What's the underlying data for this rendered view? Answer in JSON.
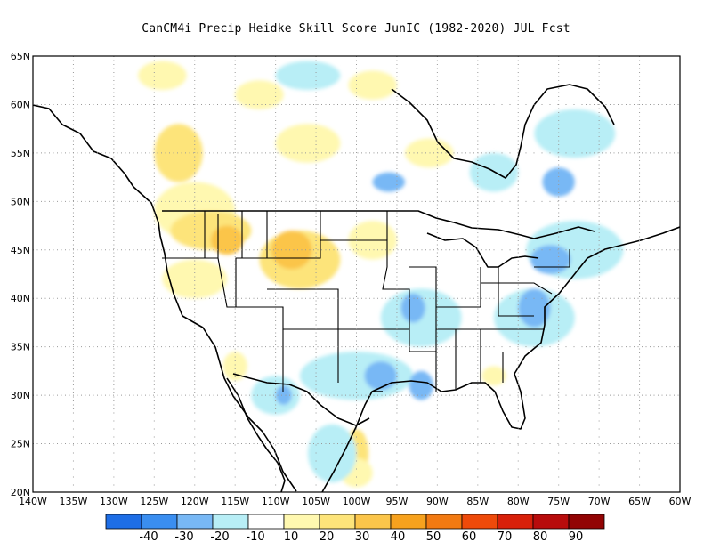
{
  "title": "CanCM4i Precip Heidke Skill Score JunIC (1982-2020) JUL Fcst",
  "map": {
    "projection": "equirectangular",
    "lon_range": [
      -140,
      -60
    ],
    "lat_range": [
      20,
      65
    ],
    "lat_labels": [
      "65N",
      "60N",
      "55N",
      "50N",
      "45N",
      "40N",
      "35N",
      "30N",
      "25N",
      "20N"
    ],
    "lon_labels": [
      "140W",
      "135W",
      "130W",
      "125W",
      "120W",
      "115W",
      "110W",
      "105W",
      "100W",
      "95W",
      "90W",
      "85W",
      "80W",
      "75W",
      "70W",
      "65W",
      "60W"
    ],
    "gridlines": "dotted",
    "regions": [
      {
        "category": "10-20",
        "center": [
          -124,
          63
        ],
        "size": [
          6,
          3
        ]
      },
      {
        "category": "10-20",
        "center": [
          -112,
          61
        ],
        "size": [
          6,
          3
        ]
      },
      {
        "category": "10-20",
        "center": [
          -98,
          62
        ],
        "size": [
          6,
          3
        ]
      },
      {
        "category": "10-20",
        "center": [
          -106,
          56
        ],
        "size": [
          8,
          4
        ]
      },
      {
        "category": "10-20",
        "center": [
          -91,
          55
        ],
        "size": [
          6,
          3
        ]
      },
      {
        "category": "20-30",
        "center": [
          -122,
          55
        ],
        "size": [
          6,
          6
        ]
      },
      {
        "category": "10-20",
        "center": [
          -120,
          49
        ],
        "size": [
          10,
          6
        ]
      },
      {
        "category": "20-30",
        "center": [
          -118,
          47
        ],
        "size": [
          10,
          4
        ]
      },
      {
        "category": "30-40",
        "center": [
          -116,
          46
        ],
        "size": [
          4,
          3
        ]
      },
      {
        "category": "20-30",
        "center": [
          -107,
          44
        ],
        "size": [
          10,
          6
        ]
      },
      {
        "category": "30-40",
        "center": [
          -108,
          45
        ],
        "size": [
          5,
          4
        ]
      },
      {
        "category": "10-20",
        "center": [
          -98,
          46
        ],
        "size": [
          6,
          4
        ]
      },
      {
        "category": "10-20",
        "center": [
          -120,
          42
        ],
        "size": [
          8,
          4
        ]
      },
      {
        "category": "20-30",
        "center": [
          -100,
          24
        ],
        "size": [
          3,
          5
        ]
      },
      {
        "category": "10-20",
        "center": [
          -100,
          22
        ],
        "size": [
          4,
          3
        ]
      },
      {
        "category": "10-20",
        "center": [
          -83,
          32
        ],
        "size": [
          3,
          2
        ]
      },
      {
        "category": "10-20",
        "center": [
          -115,
          33
        ],
        "size": [
          3,
          3
        ]
      },
      {
        "category": "-10--20",
        "center": [
          -83,
          53
        ],
        "size": [
          6,
          4
        ]
      },
      {
        "category": "-20--30",
        "center": [
          -96,
          52
        ],
        "size": [
          4,
          2
        ]
      },
      {
        "category": "-10--20",
        "center": [
          -73,
          57
        ],
        "size": [
          10,
          5
        ]
      },
      {
        "category": "-20--30",
        "center": [
          -75,
          52
        ],
        "size": [
          4,
          3
        ]
      },
      {
        "category": "-10--20",
        "center": [
          -73,
          45
        ],
        "size": [
          12,
          6
        ]
      },
      {
        "category": "-20--30",
        "center": [
          -76,
          44
        ],
        "size": [
          5,
          3
        ]
      },
      {
        "category": "-10--20",
        "center": [
          -92,
          38
        ],
        "size": [
          10,
          6
        ]
      },
      {
        "category": "-20--30",
        "center": [
          -93,
          39
        ],
        "size": [
          3,
          3
        ]
      },
      {
        "category": "-10--20",
        "center": [
          -78,
          38
        ],
        "size": [
          10,
          6
        ]
      },
      {
        "category": "-20--30",
        "center": [
          -78,
          39
        ],
        "size": [
          4,
          4
        ]
      },
      {
        "category": "-10--20",
        "center": [
          -100,
          32
        ],
        "size": [
          14,
          5
        ]
      },
      {
        "category": "-20--30",
        "center": [
          -97,
          32
        ],
        "size": [
          4,
          3
        ]
      },
      {
        "category": "-20--30",
        "center": [
          -92,
          31
        ],
        "size": [
          3,
          3
        ]
      },
      {
        "category": "-10--20",
        "center": [
          -110,
          30
        ],
        "size": [
          6,
          4
        ]
      },
      {
        "category": "-20--30",
        "center": [
          -109,
          30
        ],
        "size": [
          2,
          2
        ]
      },
      {
        "category": "-10--20",
        "center": [
          -103,
          24
        ],
        "size": [
          6,
          6
        ]
      },
      {
        "category": "-10--20",
        "center": [
          -106,
          63
        ],
        "size": [
          8,
          3
        ]
      }
    ]
  },
  "colorbar": {
    "bins": [
      {
        "color": "#1e6ee6"
      },
      {
        "color": "#3a8ef0"
      },
      {
        "color": "#78b8f5"
      },
      {
        "color": "#b8eef6"
      },
      {
        "color": "#ffffff"
      },
      {
        "color": "#fff8b0"
      },
      {
        "color": "#fde47a"
      },
      {
        "color": "#fbc54a"
      },
      {
        "color": "#f7a21e"
      },
      {
        "color": "#f27a12"
      },
      {
        "color": "#ee4a0a"
      },
      {
        "color": "#d8200a"
      },
      {
        "color": "#b80c0c"
      },
      {
        "color": "#920404"
      }
    ],
    "labels": [
      "-40",
      "-30",
      "-20",
      "-10",
      "10",
      "20",
      "30",
      "40",
      "50",
      "60",
      "70",
      "80",
      "90"
    ]
  },
  "colors": {
    "-10--20": "#b8eef6",
    "-20--30": "#78b8f5",
    "10-20": "#fff8b0",
    "20-30": "#fde47a",
    "30-40": "#fbc54a"
  }
}
